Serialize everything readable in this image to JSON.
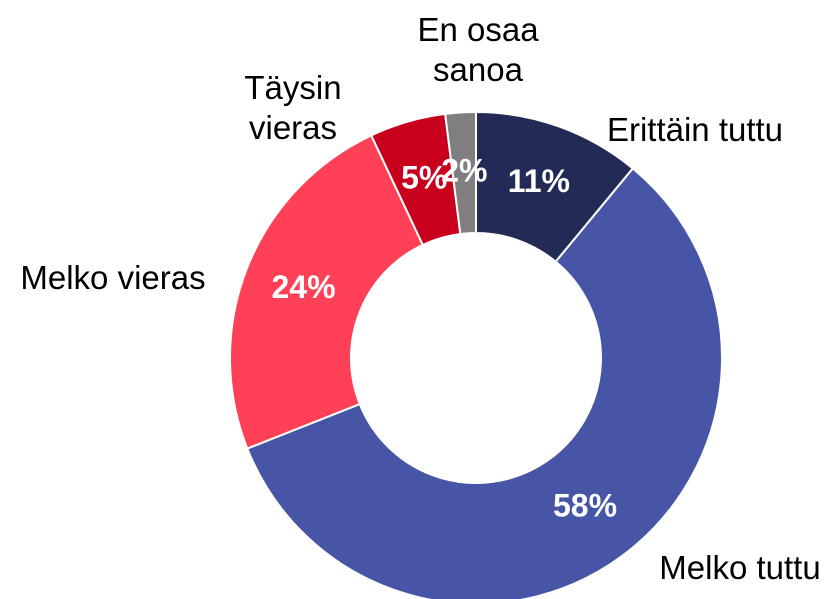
{
  "chart_data": {
    "type": "donut",
    "categories": [
      "Erittäin tuttu",
      "Melko tuttu",
      "Melko vieras",
      "Täysin vieras",
      "En osaa sanoa"
    ],
    "values": [
      11,
      58,
      24,
      5,
      2
    ],
    "value_labels": [
      "11%",
      "58%",
      "24%",
      "5%",
      "2%"
    ],
    "colors": [
      "#222a55",
      "#4655a5",
      "#ff4057",
      "#c8001e",
      "#7f7f7f"
    ]
  }
}
